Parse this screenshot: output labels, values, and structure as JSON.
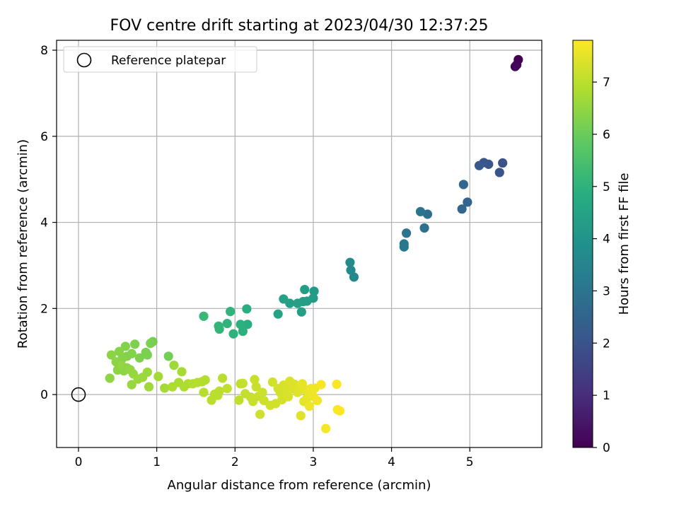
{
  "chart_data": {
    "type": "scatter",
    "title": "FOV centre drift starting at 2023/04/30 12:37:25",
    "xlabel": "Angular distance from reference (arcmin)",
    "ylabel": "Rotation from reference (arcmin)",
    "xlim": [
      -0.28,
      5.92
    ],
    "ylim": [
      -1.23,
      8.23
    ],
    "xticks": [
      0,
      1,
      2,
      3,
      4,
      5
    ],
    "yticks": [
      0,
      2,
      4,
      6,
      8
    ],
    "grid": true,
    "legend": {
      "placement": "upper-left",
      "entries": [
        "Reference platepar"
      ]
    },
    "reference_point": {
      "x": 0,
      "y": 0,
      "marker": "open-circle"
    },
    "colorbar": {
      "label": "Hours from first FF file",
      "colormap": "viridis",
      "range": [
        0,
        7.8
      ],
      "ticks": [
        0,
        1,
        2,
        3,
        4,
        5,
        6,
        7
      ]
    },
    "points": [
      [
        5.62,
        7.78,
        0.0
      ],
      [
        5.6,
        7.66,
        0.05
      ],
      [
        5.58,
        7.62,
        0.1
      ],
      [
        5.42,
        5.38,
        1.9
      ],
      [
        5.38,
        5.16,
        2.0
      ],
      [
        5.24,
        5.35,
        2.05
      ],
      [
        5.18,
        5.39,
        2.1
      ],
      [
        5.12,
        5.32,
        2.15
      ],
      [
        4.97,
        4.47,
        2.5
      ],
      [
        4.92,
        4.88,
        2.55
      ],
      [
        4.9,
        4.31,
        2.6
      ],
      [
        4.46,
        4.19,
        2.85
      ],
      [
        4.42,
        3.87,
        2.9
      ],
      [
        4.37,
        4.25,
        2.95
      ],
      [
        4.19,
        3.75,
        3.05
      ],
      [
        4.16,
        3.5,
        3.1
      ],
      [
        4.16,
        3.43,
        3.15
      ],
      [
        3.52,
        2.73,
        3.6
      ],
      [
        3.48,
        2.89,
        3.65
      ],
      [
        3.47,
        3.07,
        3.7
      ],
      [
        3.01,
        2.4,
        4.2
      ],
      [
        3.0,
        2.24,
        4.25
      ],
      [
        2.92,
        2.17,
        4.3
      ],
      [
        2.89,
        2.44,
        4.3
      ],
      [
        2.87,
        2.16,
        4.35
      ],
      [
        2.85,
        1.92,
        4.35
      ],
      [
        2.8,
        2.12,
        4.4
      ],
      [
        2.7,
        2.12,
        4.4
      ],
      [
        2.62,
        2.22,
        4.45
      ],
      [
        2.55,
        1.87,
        4.5
      ],
      [
        2.16,
        1.63,
        4.9
      ],
      [
        2.15,
        1.99,
        4.9
      ],
      [
        2.1,
        1.47,
        4.95
      ],
      [
        2.07,
        1.63,
        4.95
      ],
      [
        1.98,
        1.41,
        5.0
      ],
      [
        1.94,
        1.93,
        5.05
      ],
      [
        1.9,
        1.65,
        5.05
      ],
      [
        1.8,
        1.52,
        5.1
      ],
      [
        1.79,
        1.59,
        5.1
      ],
      [
        1.6,
        1.82,
        5.2
      ],
      [
        1.15,
        0.89,
        6.1
      ],
      [
        0.95,
        1.23,
        6.15
      ],
      [
        0.92,
        1.19,
        6.2
      ],
      [
        0.88,
        0.92,
        6.2
      ],
      [
        0.86,
        0.98,
        6.2
      ],
      [
        0.78,
        0.85,
        6.25
      ],
      [
        0.72,
        1.17,
        6.25
      ],
      [
        0.68,
        0.95,
        6.3
      ],
      [
        0.62,
        0.89,
        6.3
      ],
      [
        0.6,
        1.12,
        6.3
      ],
      [
        0.56,
        0.84,
        6.35
      ],
      [
        0.52,
        1.0,
        6.35
      ],
      [
        0.5,
        0.57,
        6.4
      ],
      [
        0.48,
        0.76,
        6.4
      ],
      [
        0.42,
        0.92,
        6.4
      ],
      [
        0.4,
        0.38,
        6.45
      ],
      [
        0.58,
        0.55,
        6.45
      ],
      [
        0.55,
        0.68,
        6.5
      ],
      [
        0.62,
        0.62,
        6.45
      ],
      [
        0.66,
        0.58,
        6.5
      ],
      [
        0.7,
        0.48,
        6.55
      ],
      [
        0.68,
        0.23,
        6.55
      ],
      [
        0.76,
        0.36,
        6.6
      ],
      [
        0.82,
        0.4,
        6.6
      ],
      [
        0.88,
        0.52,
        6.6
      ],
      [
        0.9,
        0.18,
        6.65
      ],
      [
        1.02,
        0.42,
        6.7
      ],
      [
        1.1,
        0.15,
        6.7
      ],
      [
        1.22,
        0.68,
        6.65
      ],
      [
        1.28,
        0.28,
        6.8
      ],
      [
        1.2,
        0.18,
        6.85
      ],
      [
        1.32,
        0.53,
        6.75
      ],
      [
        1.35,
        0.18,
        6.85
      ],
      [
        1.4,
        0.25,
        6.85
      ],
      [
        1.46,
        0.25,
        6.9
      ],
      [
        1.52,
        0.28,
        6.9
      ],
      [
        1.58,
        0.3,
        6.9
      ],
      [
        1.62,
        0.34,
        6.9
      ],
      [
        1.6,
        0.05,
        6.95
      ],
      [
        1.7,
        -0.13,
        7.0
      ],
      [
        1.74,
        0.01,
        7.0
      ],
      [
        1.78,
        -0.02,
        7.0
      ],
      [
        1.8,
        0.08,
        7.0
      ],
      [
        1.84,
        0.38,
        7.0
      ],
      [
        1.9,
        0.14,
        7.05
      ],
      [
        2.05,
        -0.13,
        7.05
      ],
      [
        2.07,
        0.25,
        7.05
      ],
      [
        2.1,
        0.26,
        7.1
      ],
      [
        2.13,
        0.02,
        7.1
      ],
      [
        2.2,
        -0.06,
        7.1
      ],
      [
        2.23,
        -0.16,
        7.15
      ],
      [
        2.25,
        0.35,
        7.15
      ],
      [
        2.27,
        0.18,
        7.15
      ],
      [
        2.3,
        -0.04,
        7.15
      ],
      [
        2.32,
        -0.46,
        7.2
      ],
      [
        2.35,
        0.05,
        7.2
      ],
      [
        2.37,
        -0.14,
        7.2
      ],
      [
        2.45,
        -0.25,
        7.25
      ],
      [
        2.48,
        0.29,
        7.25
      ],
      [
        2.52,
        -0.21,
        7.25
      ],
      [
        2.55,
        0.14,
        7.3
      ],
      [
        2.58,
        0.04,
        7.3
      ],
      [
        2.6,
        -0.12,
        7.3
      ],
      [
        2.62,
        0.22,
        7.35
      ],
      [
        2.65,
        0.11,
        7.35
      ],
      [
        2.68,
        -0.05,
        7.35
      ],
      [
        2.7,
        0.31,
        7.4
      ],
      [
        2.72,
        0.13,
        7.4
      ],
      [
        2.76,
        0.24,
        7.4
      ],
      [
        2.8,
        0.05,
        7.45
      ],
      [
        2.82,
        0.17,
        7.45
      ],
      [
        2.84,
        -0.49,
        7.45
      ],
      [
        2.86,
        0.25,
        7.5
      ],
      [
        2.88,
        -0.16,
        7.5
      ],
      [
        2.9,
        0.11,
        7.5
      ],
      [
        2.92,
        -0.09,
        7.55
      ],
      [
        2.94,
        0.06,
        7.55
      ],
      [
        2.95,
        -0.27,
        7.6
      ],
      [
        2.97,
        0.14,
        7.6
      ],
      [
        3.0,
        -0.04,
        7.6
      ],
      [
        3.02,
        0.15,
        7.65
      ],
      [
        3.05,
        -0.14,
        7.65
      ],
      [
        3.1,
        0.23,
        7.7
      ],
      [
        3.16,
        -0.79,
        7.7
      ],
      [
        3.3,
        0.24,
        7.75
      ],
      [
        3.31,
        -0.35,
        7.75
      ],
      [
        3.34,
        -0.38,
        7.8
      ]
    ]
  }
}
